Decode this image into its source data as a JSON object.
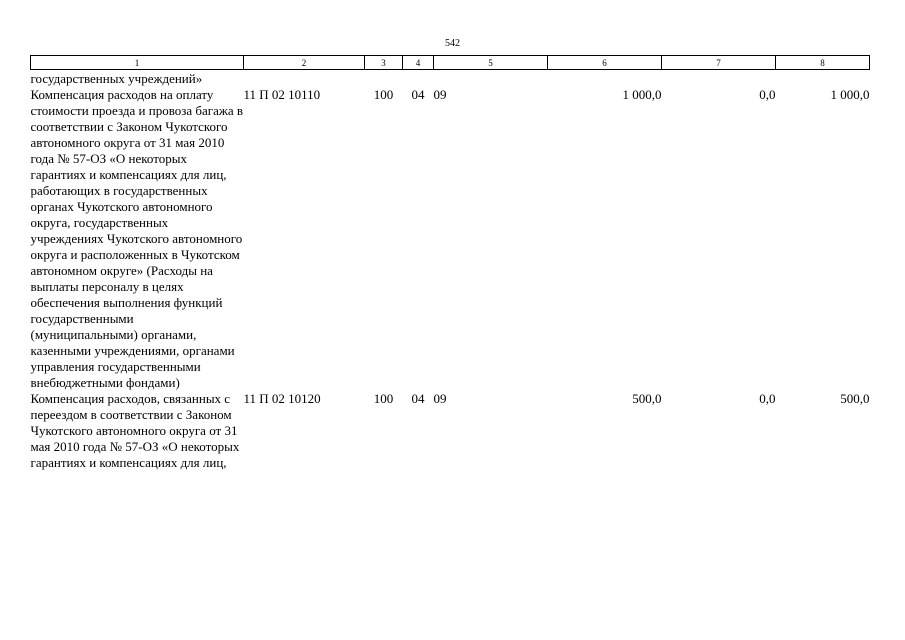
{
  "page": {
    "number": "542"
  },
  "header_columns": [
    "1",
    "2",
    "3",
    "4",
    "5",
    "6",
    "7",
    "8"
  ],
  "rows": [
    {
      "name": "государственных учреждений»",
      "code": "",
      "c3": "",
      "c4": "",
      "c5": "",
      "c6": "",
      "c7": "",
      "c8": ""
    },
    {
      "name": "Компенсация расходов на оплату стоимости проезда и провоза багажа в соответствии с Законом Чукотского автономного округа от 31 мая 2010 года № 57-ОЗ «О некоторых гарантиях и компенсациях для лиц, работающих в государственных органах Чукотского автономного округа, государственных учреждениях Чукотского автономного округа и расположенных в Чукотском автономном округе» (Расходы на выплаты персоналу в целях обеспечения выполнения функций государственными (муниципальными) органами, казенными учреждениями, органами управления государственными внебюджетными фондами)",
      "code": "11 П 02 10110",
      "c3": "100",
      "c4": "04",
      "c5": "09",
      "c6": "1 000,0",
      "c7": "0,0",
      "c8": "1 000,0"
    },
    {
      "name": "Компенсация расходов, связанных с переездом в соответствии с Законом Чукотского автономного округа от 31 мая 2010 года № 57-ОЗ «О некоторых гарантиях и компенсациях для лиц,",
      "code": "11 П 02 10120",
      "c3": "100",
      "c4": "04",
      "c5": "09",
      "c6": "500,0",
      "c7": "0,0",
      "c8": "500,0"
    }
  ]
}
